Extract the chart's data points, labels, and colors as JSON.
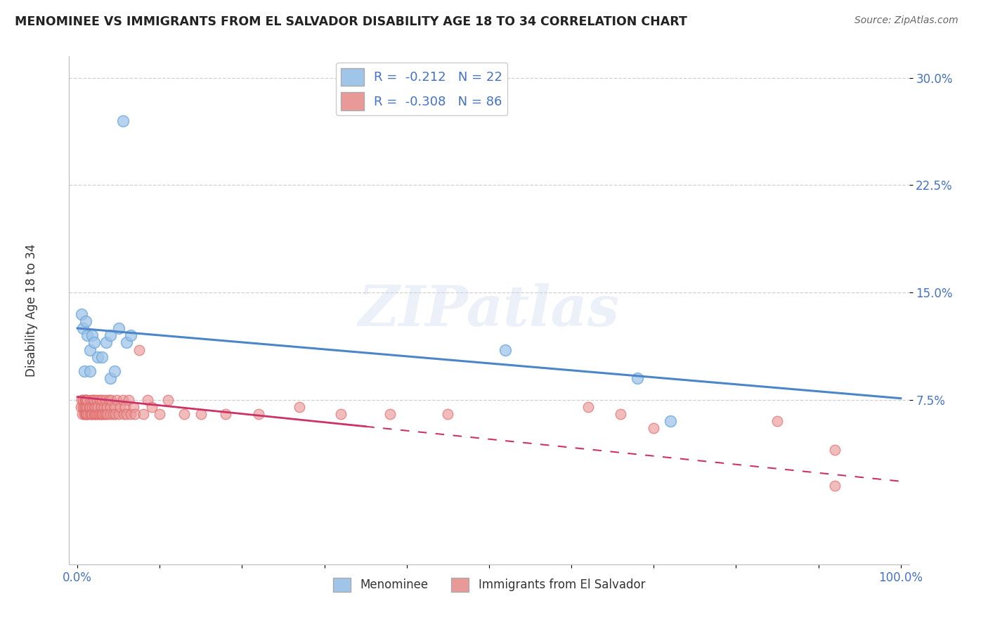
{
  "title": "MENOMINEE VS IMMIGRANTS FROM EL SALVADOR DISABILITY AGE 18 TO 34 CORRELATION CHART",
  "source": "Source: ZipAtlas.com",
  "ylabel": "Disability Age 18 to 34",
  "xlim": [
    -0.01,
    1.01
  ],
  "ylim": [
    -0.04,
    0.315
  ],
  "yticks": [
    0.075,
    0.15,
    0.225,
    0.3
  ],
  "ytick_labels": [
    "7.5%",
    "15.0%",
    "22.5%",
    "30.0%"
  ],
  "xticks": [
    0.0,
    0.1,
    0.2,
    0.3,
    0.4,
    0.5,
    0.6,
    0.7,
    0.8,
    0.9,
    1.0
  ],
  "xtick_labels": [
    "0.0%",
    "",
    "",
    "",
    "",
    "",
    "",
    "",
    "",
    "",
    "100.0%"
  ],
  "legend_r1": "R =  -0.212   N = 22",
  "legend_r2": "R =  -0.308   N = 86",
  "blue_color": "#9fc5e8",
  "pink_color": "#ea9999",
  "blue_edge": "#6fa8dc",
  "pink_edge": "#e06666",
  "trend_blue": "#4a86c8",
  "trend_pink": "#cc3366",
  "watermark": "ZIPatlas",
  "menominee_x": [
    0.005,
    0.007,
    0.008,
    0.01,
    0.012,
    0.015,
    0.015,
    0.018,
    0.02,
    0.025,
    0.03,
    0.035,
    0.04,
    0.04,
    0.045,
    0.05,
    0.055,
    0.06,
    0.065,
    0.52,
    0.68,
    0.72
  ],
  "menominee_y": [
    0.135,
    0.125,
    0.095,
    0.13,
    0.12,
    0.11,
    0.095,
    0.12,
    0.115,
    0.105,
    0.105,
    0.115,
    0.12,
    0.09,
    0.095,
    0.125,
    0.27,
    0.115,
    0.12,
    0.11,
    0.09,
    0.06
  ],
  "salvador_x": [
    0.004,
    0.005,
    0.006,
    0.007,
    0.007,
    0.008,
    0.008,
    0.009,
    0.01,
    0.01,
    0.01,
    0.01,
    0.01,
    0.01,
    0.011,
    0.012,
    0.012,
    0.013,
    0.014,
    0.015,
    0.015,
    0.016,
    0.017,
    0.018,
    0.018,
    0.019,
    0.02,
    0.02,
    0.02,
    0.021,
    0.022,
    0.023,
    0.024,
    0.025,
    0.025,
    0.026,
    0.027,
    0.028,
    0.029,
    0.03,
    0.03,
    0.031,
    0.032,
    0.033,
    0.034,
    0.035,
    0.036,
    0.037,
    0.038,
    0.04,
    0.04,
    0.041,
    0.043,
    0.045,
    0.046,
    0.048,
    0.05,
    0.052,
    0.055,
    0.056,
    0.058,
    0.06,
    0.062,
    0.065,
    0.068,
    0.07,
    0.075,
    0.08,
    0.085,
    0.09,
    0.1,
    0.11,
    0.13,
    0.15,
    0.18,
    0.22,
    0.27,
    0.32,
    0.38,
    0.45,
    0.62,
    0.66,
    0.7,
    0.85,
    0.92,
    0.92
  ],
  "salvador_y": [
    0.07,
    0.075,
    0.065,
    0.07,
    0.075,
    0.065,
    0.07,
    0.075,
    0.065,
    0.07,
    0.075,
    0.065,
    0.07,
    0.075,
    0.065,
    0.07,
    0.075,
    0.065,
    0.07,
    0.065,
    0.07,
    0.075,
    0.065,
    0.07,
    0.065,
    0.075,
    0.065,
    0.07,
    0.075,
    0.065,
    0.07,
    0.065,
    0.075,
    0.065,
    0.07,
    0.065,
    0.075,
    0.065,
    0.07,
    0.065,
    0.075,
    0.065,
    0.07,
    0.065,
    0.075,
    0.065,
    0.07,
    0.065,
    0.075,
    0.07,
    0.065,
    0.075,
    0.065,
    0.07,
    0.065,
    0.075,
    0.065,
    0.07,
    0.075,
    0.065,
    0.07,
    0.065,
    0.075,
    0.065,
    0.07,
    0.065,
    0.11,
    0.065,
    0.075,
    0.07,
    0.065,
    0.075,
    0.065,
    0.065,
    0.065,
    0.065,
    0.07,
    0.065,
    0.065,
    0.065,
    0.07,
    0.065,
    0.055,
    0.06,
    0.04,
    0.015
  ],
  "trend_blue_x0": 0.0,
  "trend_blue_y0": 0.125,
  "trend_blue_x1": 1.0,
  "trend_blue_y1": 0.076,
  "trend_pink_x0": 0.0,
  "trend_pink_y0": 0.077,
  "trend_pink_x1": 1.0,
  "trend_pink_y1": 0.018,
  "trend_pink_solid_end": 0.35
}
